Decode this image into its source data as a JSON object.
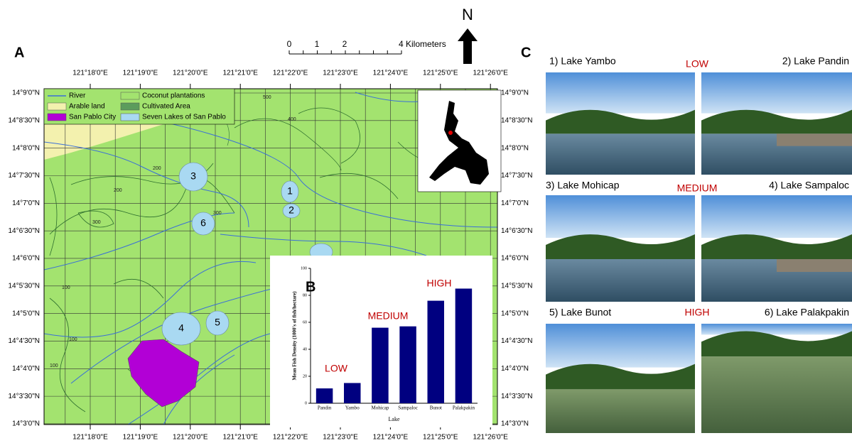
{
  "panel_labels": {
    "map": "A",
    "photos": "C"
  },
  "scale_bar": {
    "labels": [
      "0",
      "1",
      "2",
      "4 Kilometers"
    ]
  },
  "north_arrow": "N",
  "map": {
    "lon_labels": [
      "121°18'0\"E",
      "121°19'0\"E",
      "121°20'0\"E",
      "121°21'0\"E",
      "121°22'0\"E",
      "121°23'0\"E",
      "121°24'0\"E",
      "121°25'0\"E",
      "121°26'0\"E"
    ],
    "lat_labels": [
      "14°9'0\"N",
      "14°8'30\"N",
      "14°8'0\"N",
      "14°7'30\"N",
      "14°7'0\"N",
      "14°6'30\"N",
      "14°6'0\"N",
      "14°5'30\"N",
      "14°5'0\"N",
      "14°4'30\"N",
      "14°4'0\"N",
      "14°3'30\"N",
      "14°3'0\"N"
    ],
    "legend": [
      "River",
      "Coconut plantations",
      "Arable land",
      "Cultivated Area",
      "San Pablo City",
      "Seven Lakes of San Pablo"
    ],
    "lake_labels": [
      "1",
      "2",
      "3",
      "4",
      "5",
      "6"
    ],
    "contour_labels": [
      "100",
      "200",
      "300",
      "400",
      "500",
      "100",
      "200",
      "300",
      "100",
      "100"
    ]
  },
  "chart_data": {
    "type": "bar",
    "panel_label": "B",
    "categories": [
      "Pandin",
      "Yambo",
      "Mohicap",
      "Sampaloc",
      "Bunot",
      "Palakpakin"
    ],
    "values": [
      11,
      15,
      56,
      57,
      76,
      85
    ],
    "color": "#000080",
    "ylim": [
      0,
      100
    ],
    "yticks": [
      0,
      20,
      40,
      60,
      80,
      100
    ],
    "ylabel": "Mean Fish Density (1000's of fish/hectare)",
    "xlabel": "Lake",
    "annotations": [
      "LOW",
      "MEDIUM",
      "HIGH"
    ]
  },
  "photos": {
    "captions": [
      "1) Lake Yambo",
      "2) Lake Pandin",
      "3) Lake Mohicap",
      "4) Lake Sampaloc",
      "5) Lake Bunot",
      "6) Lake Palakpakin"
    ],
    "density_labels": [
      "LOW",
      "MEDIUM",
      "HIGH"
    ]
  }
}
